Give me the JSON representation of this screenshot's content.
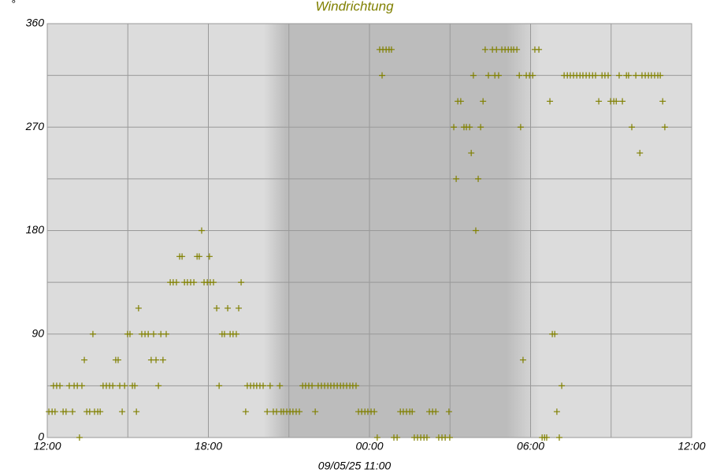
{
  "chart_data": {
    "type": "scatter",
    "title": "Windrichtung",
    "y_unit": "°",
    "xlabel": "09/05/25 11:00",
    "color": "#808000",
    "grid": true,
    "xlim": [
      0,
      24
    ],
    "xticks": [
      {
        "value": 0,
        "label": "12:00"
      },
      {
        "value": 6,
        "label": "18:00"
      },
      {
        "value": 12,
        "label": "00:00"
      },
      {
        "value": 18,
        "label": "06:00"
      },
      {
        "value": 24,
        "label": "12:00"
      }
    ],
    "xminorticks": [
      3,
      9,
      15,
      21
    ],
    "ylim": [
      0,
      360
    ],
    "yticks": [
      0,
      90,
      180,
      270,
      360
    ],
    "yminorticks": [
      45,
      135,
      225,
      315
    ],
    "x": [
      0.06,
      0.18,
      0.23,
      0.29,
      0.35,
      0.47,
      0.59,
      0.7,
      0.82,
      0.94,
      1.0,
      1.12,
      1.2,
      1.29,
      1.38,
      1.47,
      1.58,
      1.7,
      1.76,
      1.88,
      1.97,
      2.08,
      2.2,
      2.32,
      2.44,
      2.55,
      2.64,
      2.7,
      2.79,
      2.88,
      2.99,
      3.08,
      3.17,
      3.26,
      3.32,
      3.4,
      3.52,
      3.64,
      3.76,
      3.87,
      3.96,
      4.05,
      4.14,
      4.23,
      4.31,
      4.43,
      4.58,
      4.69,
      4.81,
      4.93,
      5.02,
      5.11,
      5.22,
      5.34,
      5.46,
      5.58,
      5.66,
      5.75,
      5.84,
      5.96,
      6.04,
      6.07,
      6.19,
      6.31,
      6.4,
      6.51,
      6.6,
      6.72,
      6.81,
      6.92,
      7.04,
      7.13,
      7.22,
      7.39,
      7.45,
      7.57,
      7.69,
      7.8,
      7.92,
      8.04,
      8.19,
      8.3,
      8.42,
      8.54,
      8.66,
      8.71,
      8.8,
      8.92,
      9.04,
      9.15,
      9.27,
      9.39,
      9.51,
      9.62,
      9.74,
      9.86,
      9.98,
      10.09,
      10.21,
      10.33,
      10.45,
      10.56,
      10.68,
      10.8,
      10.92,
      11.03,
      11.15,
      11.27,
      11.38,
      11.5,
      11.59,
      11.71,
      11.83,
      11.94,
      12.06,
      12.18,
      12.29,
      12.38,
      12.47,
      12.5,
      12.62,
      12.73,
      12.82,
      12.91,
      13.03,
      13.15,
      13.26,
      13.38,
      13.5,
      13.59,
      13.67,
      13.79,
      13.91,
      14.03,
      14.14,
      14.23,
      14.35,
      14.47,
      14.58,
      14.7,
      14.82,
      14.96,
      14.99,
      15.14,
      15.23,
      15.29,
      15.4,
      15.52,
      15.61,
      15.73,
      15.79,
      15.87,
      15.96,
      16.05,
      16.14,
      16.23,
      16.31,
      16.43,
      16.58,
      16.67,
      16.73,
      16.81,
      16.93,
      17.05,
      17.17,
      17.28,
      17.37,
      17.49,
      17.58,
      17.63,
      17.72,
      17.84,
      17.96,
      18.08,
      18.16,
      18.31,
      18.43,
      18.52,
      18.6,
      18.72,
      18.81,
      18.9,
      18.98,
      19.07,
      19.16,
      19.25,
      19.37,
      19.48,
      19.6,
      19.72,
      19.84,
      19.95,
      20.07,
      20.19,
      20.31,
      20.42,
      20.54,
      20.66,
      20.77,
      20.89,
      20.98,
      21.1,
      21.19,
      21.3,
      21.42,
      21.57,
      21.65,
      21.77,
      21.92,
      22.07,
      22.15,
      22.27,
      22.39,
      22.5,
      22.62,
      22.74,
      22.83,
      22.92,
      23.0
    ],
    "values": [
      22.5,
      22.5,
      45,
      22.5,
      45,
      45,
      22.5,
      22.5,
      45,
      22.5,
      45,
      45,
      0,
      45,
      67.5,
      22.5,
      22.5,
      90,
      22.5,
      22.5,
      22.5,
      45,
      45,
      45,
      45,
      67.5,
      67.5,
      45,
      22.5,
      45,
      90,
      90,
      45,
      45,
      22.5,
      112.5,
      90,
      90,
      90,
      67.5,
      90,
      67.5,
      45,
      90,
      67.5,
      90,
      135,
      135,
      135,
      157.5,
      157.5,
      135,
      135,
      135,
      135,
      157.5,
      157.5,
      180,
      135,
      135,
      157.5,
      135,
      135,
      112.5,
      45,
      90,
      90,
      112.5,
      90,
      90,
      90,
      112.5,
      135,
      22.5,
      45,
      45,
      45,
      45,
      45,
      45,
      22.5,
      45,
      22.5,
      22.5,
      45,
      22.5,
      22.5,
      22.5,
      22.5,
      22.5,
      22.5,
      22.5,
      45,
      45,
      45,
      45,
      22.5,
      45,
      45,
      45,
      45,
      45,
      45,
      45,
      45,
      45,
      45,
      45,
      45,
      45,
      22.5,
      22.5,
      22.5,
      22.5,
      22.5,
      22.5,
      0,
      337.5,
      315,
      337.5,
      337.5,
      337.5,
      337.5,
      0,
      0,
      22.5,
      22.5,
      22.5,
      22.5,
      22.5,
      0,
      0,
      0,
      0,
      0,
      22.5,
      22.5,
      22.5,
      0,
      0,
      0,
      22.5,
      0,
      270,
      225,
      292.5,
      292.5,
      270,
      270,
      270,
      247.5,
      315,
      180,
      225,
      270,
      292.5,
      337.5,
      315,
      337.5,
      315,
      337.5,
      315,
      337.5,
      337.5,
      337.5,
      337.5,
      337.5,
      337.5,
      315,
      270,
      67.5,
      315,
      315,
      315,
      337.5,
      337.5,
      0,
      0,
      0,
      292.5,
      90,
      90,
      22.5,
      0,
      45,
      315,
      315,
      315,
      315,
      315,
      315,
      315,
      315,
      315,
      315,
      315,
      292.5,
      315,
      315,
      315,
      292.5,
      292.5,
      292.5,
      315,
      292.5,
      315,
      315,
      270,
      315,
      247.5,
      315,
      315,
      315,
      315,
      315,
      315,
      315,
      292.5,
      270
    ]
  }
}
